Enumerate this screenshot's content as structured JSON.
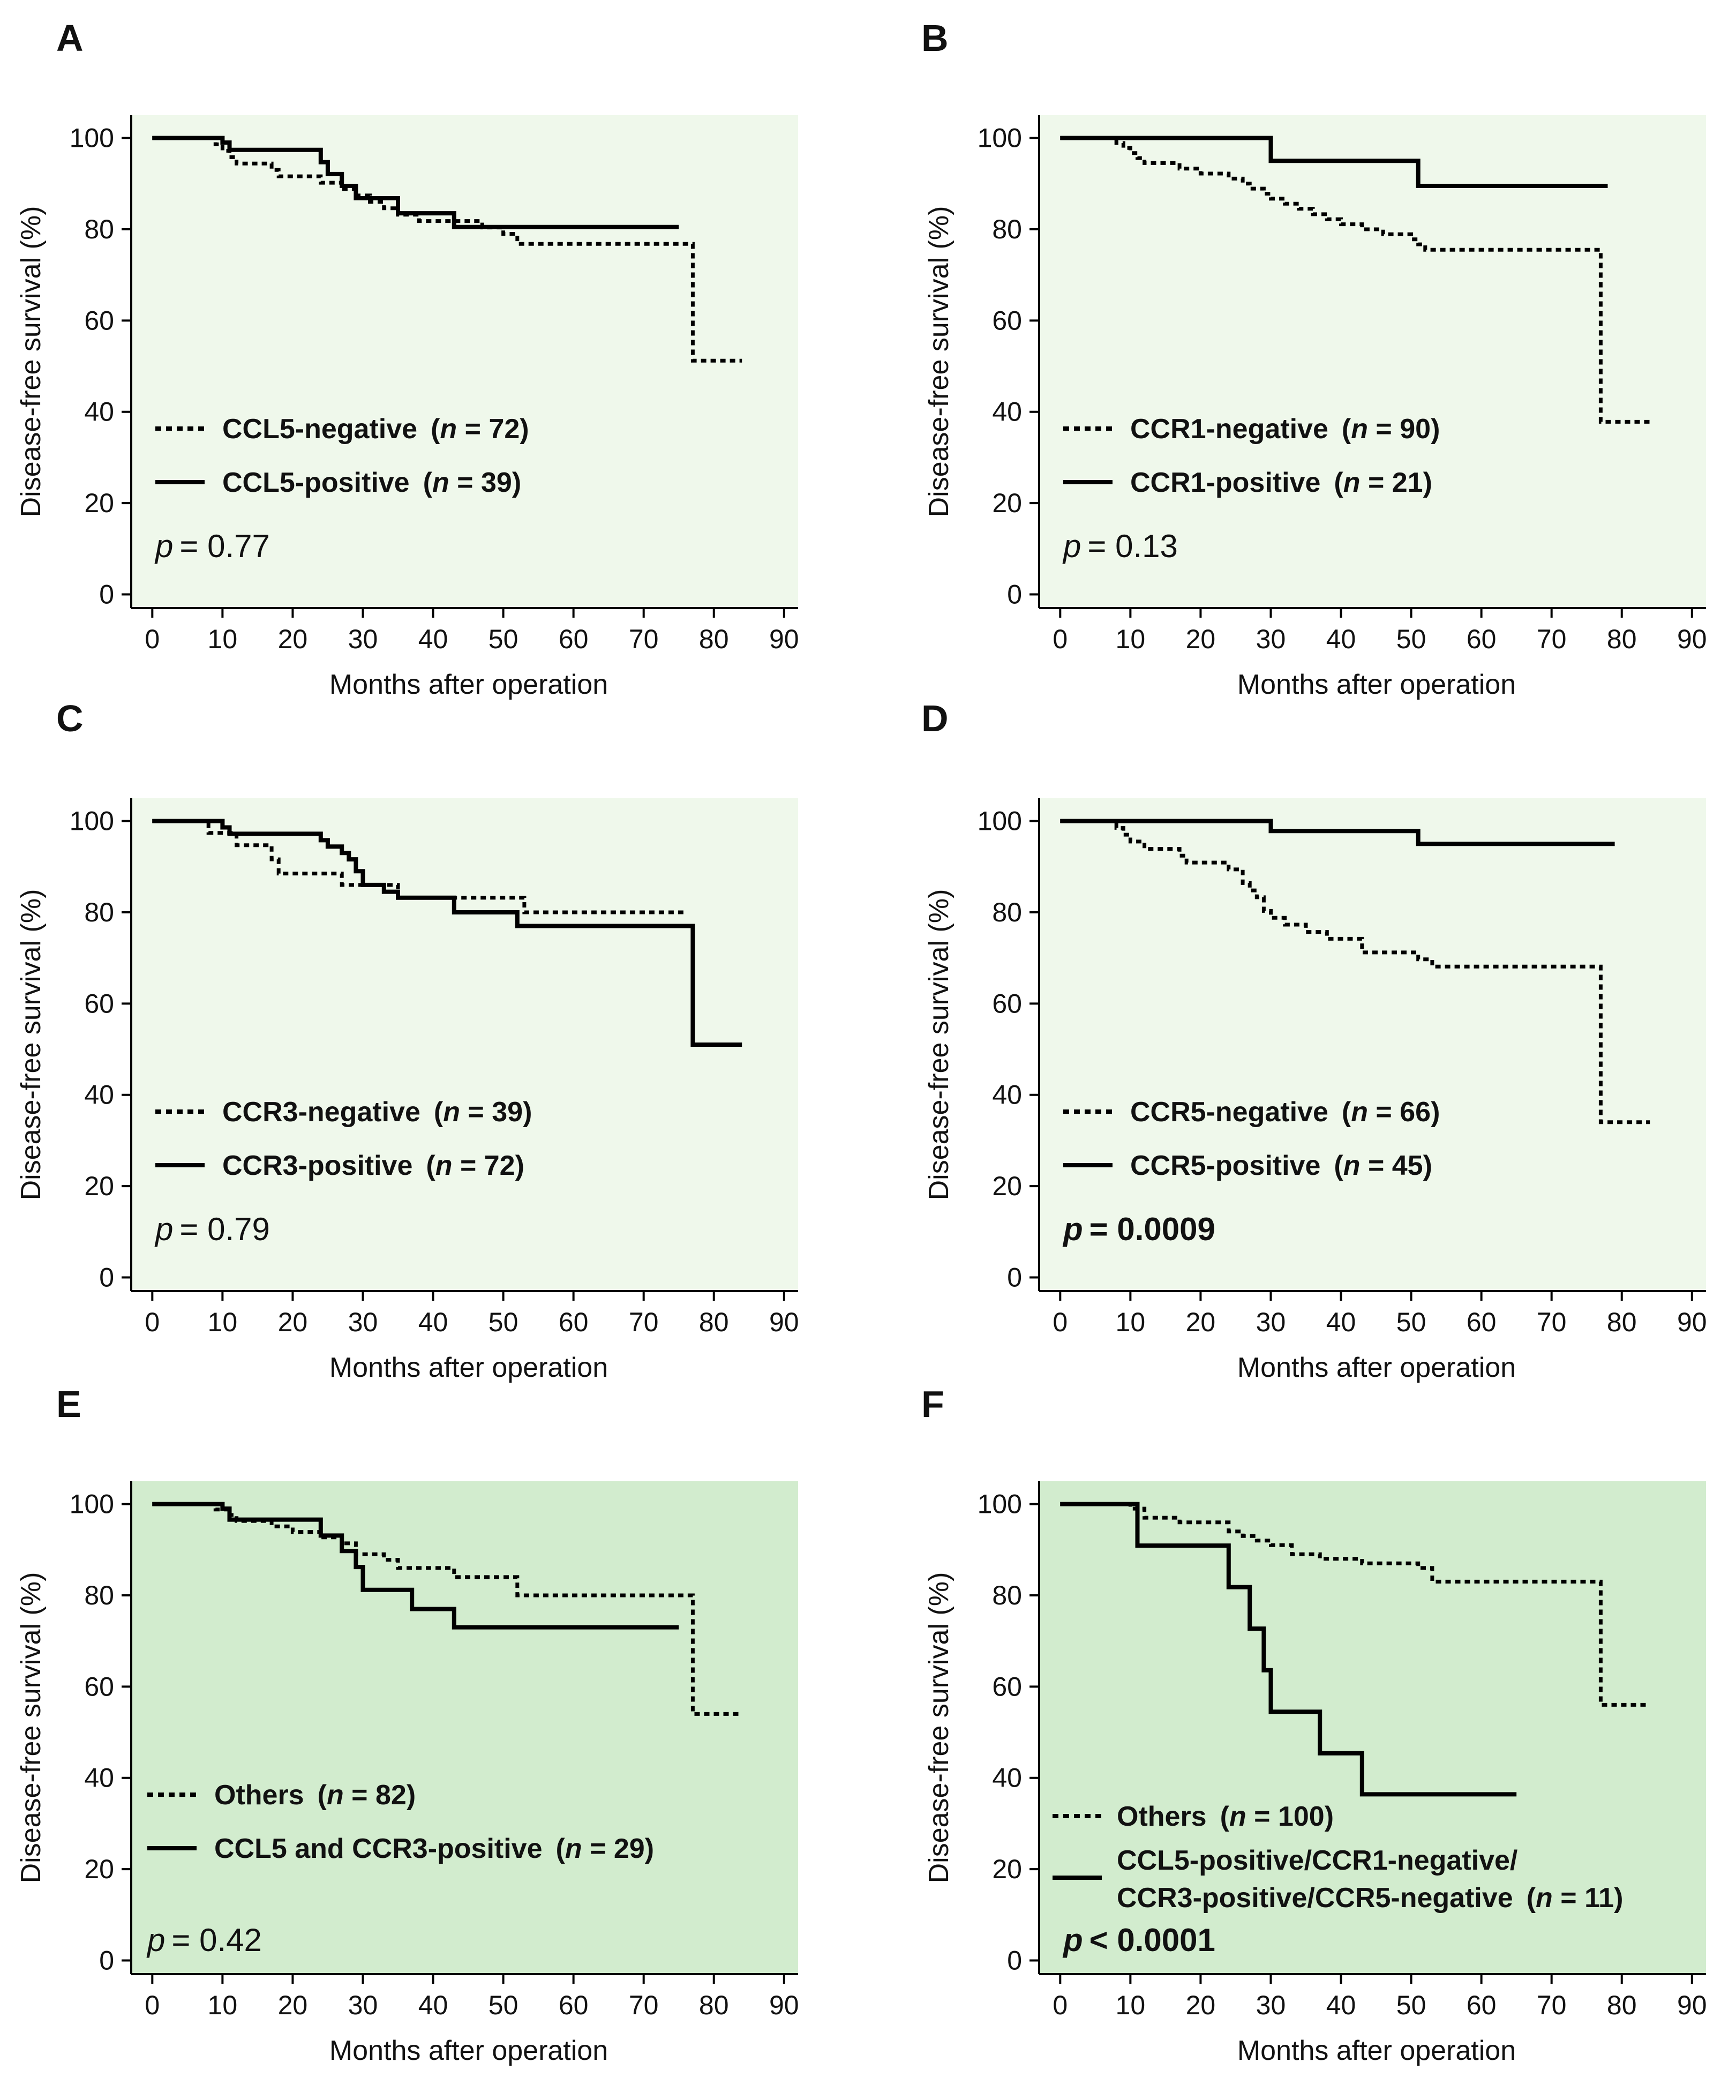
{
  "figure": {
    "colors": {
      "light": "#eff8eb",
      "medium": "#d2ecce",
      "line": "#000000"
    }
  },
  "chart_data": [
    {
      "panel": "A",
      "type": "line",
      "bg": "light",
      "xlabel": "Months after operation",
      "ylabel": "Disease-free survival (%)",
      "xlim": [
        -3,
        92
      ],
      "ylim": [
        -3,
        105
      ],
      "xticks": [
        0,
        10,
        20,
        30,
        40,
        50,
        60,
        70,
        80,
        90
      ],
      "yticks": [
        0,
        20,
        40,
        60,
        80,
        100
      ],
      "series": [
        {
          "name": "CCL5-negative",
          "n": "72",
          "style": "dotted",
          "x": [
            0,
            9,
            10,
            11,
            12,
            17,
            18,
            24,
            27,
            29,
            31,
            33,
            35,
            38,
            42,
            44,
            47,
            50,
            52,
            77,
            84
          ],
          "y": [
            100,
            98.6,
            97.2,
            95.8,
            94.4,
            93.0,
            91.6,
            90.2,
            88.8,
            87.4,
            86.0,
            84.6,
            83.2,
            81.8,
            81.8,
            81.8,
            80.4,
            79.0,
            76.8,
            51.2,
            51.2
          ]
        },
        {
          "name": "CCL5-positive",
          "n": "39",
          "style": "solid",
          "x": [
            0,
            10,
            11,
            12,
            24,
            25,
            27,
            29,
            30,
            35,
            39,
            43,
            75
          ],
          "y": [
            100,
            99.0,
            97.4,
            97.4,
            94.7,
            92.1,
            89.5,
            86.8,
            86.8,
            83.5,
            83.5,
            80.5,
            80.5
          ]
        }
      ],
      "legend": {
        "neg": "CCL5-negative",
        "pos": "CCL5-positive",
        "n_neg": "72",
        "n_pos": "39",
        "n_label": "n",
        "p_label": "p",
        "p_value": "= 0.77",
        "p_bold": false
      }
    },
    {
      "panel": "B",
      "type": "line",
      "bg": "light",
      "xlabel": "Months after operation",
      "ylabel": "Disease-free survival (%)",
      "xlim": [
        -3,
        92
      ],
      "ylim": [
        -3,
        105
      ],
      "xticks": [
        0,
        10,
        20,
        30,
        40,
        50,
        60,
        70,
        80,
        90
      ],
      "yticks": [
        0,
        20,
        40,
        60,
        80,
        100
      ],
      "series": [
        {
          "name": "CCR1-negative",
          "n": "90",
          "style": "dotted",
          "x": [
            0,
            8,
            9,
            10,
            11,
            12,
            17,
            20,
            24,
            26,
            27,
            29,
            30,
            32,
            34,
            36,
            38,
            40,
            43,
            46,
            50,
            51,
            52,
            77,
            84
          ],
          "y": [
            100,
            98.9,
            97.8,
            96.7,
            95.6,
            94.5,
            93.3,
            92.2,
            91.1,
            90.0,
            88.9,
            87.8,
            86.7,
            85.6,
            84.5,
            83.3,
            82.2,
            81.1,
            80.0,
            78.9,
            77.8,
            76.7,
            75.5,
            37.8,
            37.8
          ]
        },
        {
          "name": "CCR1-positive",
          "n": "21",
          "style": "solid",
          "x": [
            0,
            30,
            51,
            78
          ],
          "y": [
            100,
            95.0,
            89.5,
            89.5
          ]
        }
      ],
      "legend": {
        "neg": "CCR1-negative",
        "pos": "CCR1-positive",
        "n_neg": "90",
        "n_pos": "21",
        "n_label": "n",
        "p_label": "p",
        "p_value": "= 0.13",
        "p_bold": false
      }
    },
    {
      "panel": "C",
      "type": "line",
      "bg": "light",
      "xlabel": "Months after operation",
      "ylabel": "Disease-free survival (%)",
      "xlim": [
        -3,
        92
      ],
      "ylim": [
        -3,
        105
      ],
      "xticks": [
        0,
        10,
        20,
        30,
        40,
        50,
        60,
        70,
        80,
        90
      ],
      "yticks": [
        0,
        20,
        40,
        60,
        80,
        100
      ],
      "series": [
        {
          "name": "CCR3-negative",
          "n": "39",
          "style": "dotted",
          "x": [
            0,
            8,
            12,
            17,
            18,
            27,
            35,
            53,
            76
          ],
          "y": [
            100,
            97.4,
            94.7,
            91.6,
            88.5,
            86.0,
            83.2,
            80.0,
            80.0
          ]
        },
        {
          "name": "CCR3-positive",
          "n": "72",
          "style": "solid",
          "x": [
            0,
            10,
            11,
            12,
            24,
            25,
            27,
            28,
            29,
            30,
            33,
            35,
            38,
            43,
            52,
            77,
            84
          ],
          "y": [
            100,
            98.6,
            97.2,
            97.2,
            95.8,
            94.4,
            93.0,
            91.6,
            89.0,
            86.0,
            84.5,
            83.2,
            83.2,
            80.0,
            77.0,
            51.0,
            51.0
          ]
        }
      ],
      "legend": {
        "neg": "CCR3-negative",
        "pos": "CCR3-positive",
        "n_neg": "39",
        "n_pos": "72",
        "n_label": "n",
        "p_label": "p",
        "p_value": "= 0.79",
        "p_bold": false
      }
    },
    {
      "panel": "D",
      "type": "line",
      "bg": "light",
      "xlabel": "Months after operation",
      "ylabel": "Disease-free survival (%)",
      "xlim": [
        -3,
        92
      ],
      "ylim": [
        -3,
        105
      ],
      "xticks": [
        0,
        10,
        20,
        30,
        40,
        50,
        60,
        70,
        80,
        90
      ],
      "yticks": [
        0,
        20,
        40,
        60,
        80,
        100
      ],
      "series": [
        {
          "name": "CCR5-negative",
          "n": "66",
          "style": "dotted",
          "x": [
            0,
            8,
            9,
            10,
            12,
            17,
            18,
            20,
            24,
            26,
            27,
            28,
            29,
            30,
            32,
            35,
            38,
            43,
            50,
            51,
            53,
            77,
            84
          ],
          "y": [
            100,
            98.5,
            97.0,
            95.5,
            93.9,
            92.4,
            90.9,
            90.9,
            89.4,
            86.4,
            84.8,
            83.3,
            80.3,
            78.8,
            77.3,
            75.7,
            74.2,
            71.2,
            71.2,
            69.7,
            68.1,
            34.0,
            34.0
          ]
        },
        {
          "name": "CCR5-positive",
          "n": "45",
          "style": "solid",
          "x": [
            0,
            30,
            51,
            79
          ],
          "y": [
            100,
            97.8,
            95.0,
            95.0
          ]
        }
      ],
      "legend": {
        "neg": "CCR5-negative",
        "pos": "CCR5-positive",
        "n_neg": "66",
        "n_pos": "45",
        "n_label": "n",
        "p_label": "p",
        "p_value": "= 0.0009",
        "p_bold": true
      }
    },
    {
      "panel": "E",
      "type": "line",
      "bg": "medium",
      "xlabel": "Months after operation",
      "ylabel": "Disease-free survival (%)",
      "xlim": [
        -3,
        92
      ],
      "ylim": [
        -3,
        105
      ],
      "xticks": [
        0,
        10,
        20,
        30,
        40,
        50,
        60,
        70,
        80,
        90
      ],
      "yticks": [
        0,
        20,
        40,
        60,
        80,
        100
      ],
      "series": [
        {
          "name": "Others",
          "n": "82",
          "style": "dotted",
          "x": [
            0,
            9,
            11,
            12,
            17,
            20,
            24,
            27,
            29,
            33,
            35,
            43,
            52,
            77,
            84
          ],
          "y": [
            100,
            98.8,
            97.6,
            96.3,
            95.1,
            93.9,
            92.7,
            91.4,
            89.0,
            87.8,
            86.0,
            84.0,
            80.0,
            54.0,
            54.0
          ]
        },
        {
          "name": "CCL5 and CCR3-positive",
          "n": "29",
          "style": "solid",
          "x": [
            0,
            10,
            11,
            24,
            27,
            29,
            30,
            37,
            43,
            75
          ],
          "y": [
            100,
            99.0,
            96.6,
            93.1,
            89.7,
            86.2,
            81.2,
            77.0,
            73.0,
            73.0
          ]
        }
      ],
      "legend": {
        "neg": "Others",
        "pos": "CCL5 and CCR3-positive",
        "n_neg": "82",
        "n_pos": "29",
        "n_label": "n",
        "p_label": "p",
        "p_value": "= 0.42",
        "p_bold": false
      }
    },
    {
      "panel": "F",
      "type": "line",
      "bg": "medium",
      "xlabel": "Months after operation",
      "ylabel": "Disease-free survival (%)",
      "xlim": [
        -3,
        92
      ],
      "ylim": [
        -3,
        105
      ],
      "xticks": [
        0,
        10,
        20,
        30,
        40,
        50,
        60,
        70,
        80,
        90
      ],
      "yticks": [
        0,
        20,
        40,
        60,
        80,
        100
      ],
      "series": [
        {
          "name": "Others",
          "n": "100",
          "style": "dotted",
          "x": [
            0,
            10,
            12,
            17,
            24,
            26,
            28,
            30,
            33,
            37,
            40,
            43,
            45,
            51,
            53,
            77,
            84
          ],
          "y": [
            100,
            99,
            97,
            96,
            94,
            93,
            92,
            91,
            89,
            88,
            88,
            87,
            87,
            86,
            83,
            56,
            56
          ]
        },
        {
          "name": "CCL5-positive/CCR1-negative/CCR3-positive/CCR5-negative",
          "n": "11",
          "style": "solid",
          "x": [
            0,
            11,
            24,
            27,
            29,
            30,
            37,
            43,
            65
          ],
          "y": [
            100,
            90.9,
            81.8,
            72.7,
            63.6,
            54.5,
            45.4,
            36.4,
            36.4
          ]
        }
      ],
      "legend": {
        "neg": "Others",
        "pos": "CCL5-positive/CCR1-negative/",
        "pos2": "CCR3-positive/CCR5-negative",
        "n_neg": "100",
        "n_pos": "11",
        "n_label": "n",
        "p_label": "p",
        "p_value": "< 0.0001",
        "p_bold": true
      }
    }
  ]
}
